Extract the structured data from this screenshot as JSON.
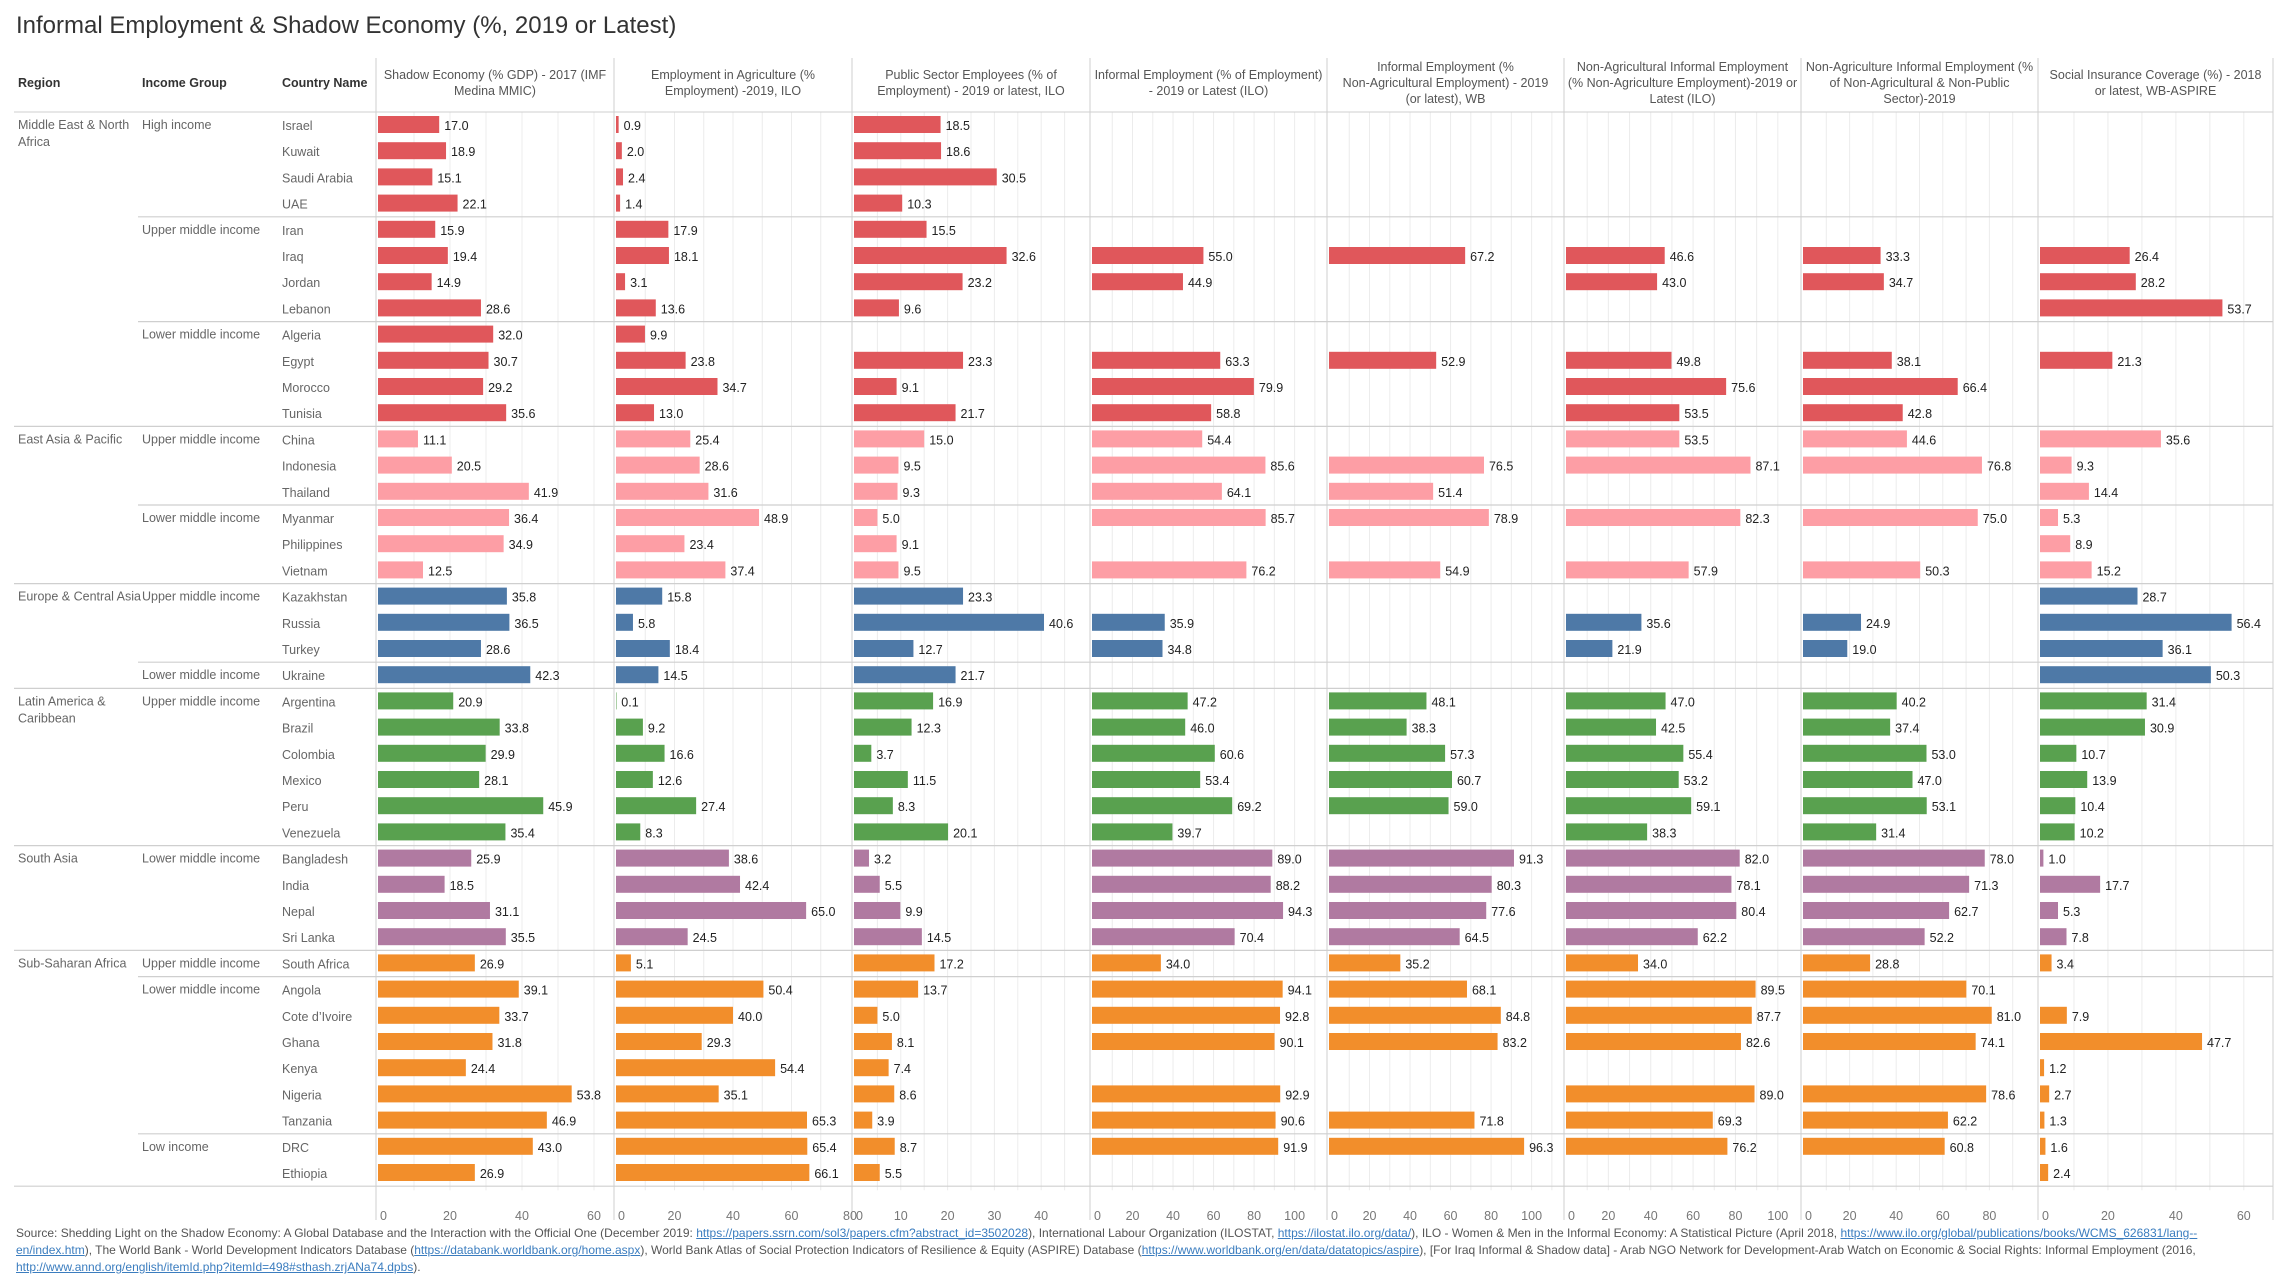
{
  "title": "Informal Employment & Shadow Economy (%, 2019 or Latest)",
  "headers": {
    "region": "Region",
    "income_group": "Income Group",
    "country": "Country Name"
  },
  "colors": {
    "Middle East & North Africa": "#e0575b",
    "East Asia & Pacific": "#fd9ea5",
    "Europe & Central Asia": "#4e79a7",
    "Latin America & Caribbean": "#59a14f",
    "South Asia": "#b07aa1",
    "Sub-Saharan Africa": "#f28e2b"
  },
  "chart_data": {
    "type": "bar",
    "orientation": "horizontal",
    "title": "Informal Employment & Shadow Economy (%, 2019 or Latest)",
    "grid": true,
    "legend": "none (color by region)",
    "measures": [
      {
        "name": "Shadow Economy (% GDP) - 2017 (IMF Medina MMIC)",
        "xlim": [
          0,
          65
        ],
        "ticks": [
          0,
          20,
          40,
          60
        ]
      },
      {
        "name": "Employment in Agriculture (% Employment) -2019, ILO",
        "xlim": [
          0,
          80
        ],
        "ticks": [
          0,
          20,
          40,
          60,
          80
        ]
      },
      {
        "name": "Public Sector Employees (% of Employment) - 2019 or latest, ILO",
        "xlim": [
          0,
          50
        ],
        "ticks": [
          0,
          10,
          20,
          30,
          40
        ]
      },
      {
        "name": "Informal Employment (% of Employment) - 2019 or Latest (ILO)",
        "xlim": [
          0,
          115
        ],
        "ticks": [
          0,
          20,
          40,
          60,
          80,
          100
        ]
      },
      {
        "name": "Informal Employment (% Non-Agricultural Employment) - 2019 (or latest), WB",
        "xlim": [
          0,
          115
        ],
        "ticks": [
          0,
          20,
          40,
          60,
          80,
          100
        ]
      },
      {
        "name": "Non-Agricultural Informal Employment (% Non-Agriculture Employment)-2019 or Latest (ILO)",
        "xlim": [
          0,
          110
        ],
        "ticks": [
          0,
          20,
          40,
          60,
          80,
          100
        ]
      },
      {
        "name": "Non-Agriculture Informal Employment (% of Non-Agricultural & Non-Public Sector)-2019",
        "xlim": [
          0,
          100
        ],
        "ticks": [
          0,
          20,
          40,
          60,
          80
        ]
      },
      {
        "name": "Social Insurance Coverage (%) - 2018 or latest, WB-ASPIRE",
        "xlim": [
          0,
          68
        ],
        "ticks": [
          0,
          20,
          40,
          60
        ]
      }
    ],
    "groups": [
      {
        "region": "Middle East & North Africa",
        "income": "High income",
        "rows": [
          {
            "country": "Israel",
            "values": [
              17.0,
              0.9,
              18.5,
              null,
              null,
              null,
              null,
              null
            ]
          },
          {
            "country": "Kuwait",
            "values": [
              18.9,
              2.0,
              18.6,
              null,
              null,
              null,
              null,
              null
            ]
          },
          {
            "country": "Saudi Arabia",
            "values": [
              15.1,
              2.4,
              30.5,
              null,
              null,
              null,
              null,
              null
            ]
          },
          {
            "country": "UAE",
            "values": [
              22.1,
              1.4,
              10.3,
              null,
              null,
              null,
              null,
              null
            ]
          }
        ]
      },
      {
        "region": "Middle East & North Africa",
        "income": "Upper middle income",
        "rows": [
          {
            "country": "Iran",
            "values": [
              15.9,
              17.9,
              15.5,
              null,
              null,
              null,
              null,
              null
            ]
          },
          {
            "country": "Iraq",
            "values": [
              19.4,
              18.1,
              32.6,
              55.0,
              67.2,
              46.6,
              33.3,
              26.4
            ]
          },
          {
            "country": "Jordan",
            "values": [
              14.9,
              3.1,
              23.2,
              44.9,
              null,
              43.0,
              34.7,
              28.2
            ]
          },
          {
            "country": "Lebanon",
            "values": [
              28.6,
              13.6,
              9.6,
              null,
              null,
              null,
              null,
              53.7
            ]
          }
        ]
      },
      {
        "region": "Middle East & North Africa",
        "income": "Lower middle income",
        "rows": [
          {
            "country": "Algeria",
            "values": [
              32.0,
              9.9,
              null,
              null,
              null,
              null,
              null,
              null
            ]
          },
          {
            "country": "Egypt",
            "values": [
              30.7,
              23.8,
              23.3,
              63.3,
              52.9,
              49.8,
              38.1,
              21.3
            ]
          },
          {
            "country": "Morocco",
            "values": [
              29.2,
              34.7,
              9.1,
              79.9,
              null,
              75.6,
              66.4,
              null
            ]
          },
          {
            "country": "Tunisia",
            "values": [
              35.6,
              13.0,
              21.7,
              58.8,
              null,
              53.5,
              42.8,
              null
            ]
          }
        ]
      },
      {
        "region": "East Asia & Pacific",
        "income": "Upper middle income",
        "rows": [
          {
            "country": "China",
            "values": [
              11.1,
              25.4,
              15.0,
              54.4,
              null,
              53.5,
              44.6,
              35.6
            ]
          },
          {
            "country": "Indonesia",
            "values": [
              20.5,
              28.6,
              9.5,
              85.6,
              76.5,
              87.1,
              76.8,
              9.3
            ]
          },
          {
            "country": "Thailand",
            "values": [
              41.9,
              31.6,
              9.3,
              64.1,
              51.4,
              null,
              null,
              14.4
            ]
          }
        ]
      },
      {
        "region": "East Asia & Pacific",
        "income": "Lower middle income",
        "rows": [
          {
            "country": "Myanmar",
            "values": [
              36.4,
              48.9,
              5.0,
              85.7,
              78.9,
              82.3,
              75.0,
              5.3
            ]
          },
          {
            "country": "Philippines",
            "values": [
              34.9,
              23.4,
              9.1,
              null,
              null,
              null,
              null,
              8.9
            ]
          },
          {
            "country": "Vietnam",
            "values": [
              12.5,
              37.4,
              9.5,
              76.2,
              54.9,
              57.9,
              50.3,
              15.2
            ]
          }
        ]
      },
      {
        "region": "Europe & Central Asia",
        "income": "Upper middle income",
        "rows": [
          {
            "country": "Kazakhstan",
            "values": [
              35.8,
              15.8,
              23.3,
              null,
              null,
              null,
              null,
              28.7
            ]
          },
          {
            "country": "Russia",
            "values": [
              36.5,
              5.8,
              40.6,
              35.9,
              null,
              35.6,
              24.9,
              56.4
            ]
          },
          {
            "country": "Turkey",
            "values": [
              28.6,
              18.4,
              12.7,
              34.8,
              null,
              21.9,
              19.0,
              36.1
            ]
          }
        ]
      },
      {
        "region": "Europe & Central Asia",
        "income": "Lower middle income",
        "rows": [
          {
            "country": "Ukraine",
            "values": [
              42.3,
              14.5,
              21.7,
              null,
              null,
              null,
              null,
              50.3
            ]
          }
        ]
      },
      {
        "region": "Latin America & Caribbean",
        "income": "Upper middle income",
        "rows": [
          {
            "country": "Argentina",
            "values": [
              20.9,
              0.1,
              16.9,
              47.2,
              48.1,
              47.0,
              40.2,
              31.4
            ]
          },
          {
            "country": "Brazil",
            "values": [
              33.8,
              9.2,
              12.3,
              46.0,
              38.3,
              42.5,
              37.4,
              30.9
            ]
          },
          {
            "country": "Colombia",
            "values": [
              29.9,
              16.6,
              3.7,
              60.6,
              57.3,
              55.4,
              53.0,
              10.7
            ]
          },
          {
            "country": "Mexico",
            "values": [
              28.1,
              12.6,
              11.5,
              53.4,
              60.7,
              53.2,
              47.0,
              13.9
            ]
          },
          {
            "country": "Peru",
            "values": [
              45.9,
              27.4,
              8.3,
              69.2,
              59.0,
              59.1,
              53.1,
              10.4
            ]
          },
          {
            "country": "Venezuela",
            "values": [
              35.4,
              8.3,
              20.1,
              39.7,
              null,
              38.3,
              31.4,
              10.2
            ]
          }
        ]
      },
      {
        "region": "South Asia",
        "income": "Lower middle income",
        "rows": [
          {
            "country": "Bangladesh",
            "values": [
              25.9,
              38.6,
              3.2,
              89.0,
              91.3,
              82.0,
              78.0,
              1.0
            ]
          },
          {
            "country": "India",
            "values": [
              18.5,
              42.4,
              5.5,
              88.2,
              80.3,
              78.1,
              71.3,
              17.7
            ]
          },
          {
            "country": "Nepal",
            "values": [
              31.1,
              65.0,
              9.9,
              94.3,
              77.6,
              80.4,
              62.7,
              5.3
            ]
          },
          {
            "country": "Sri Lanka",
            "values": [
              35.5,
              24.5,
              14.5,
              70.4,
              64.5,
              62.2,
              52.2,
              7.8
            ]
          }
        ]
      },
      {
        "region": "Sub-Saharan Africa",
        "income": "Upper middle income",
        "rows": [
          {
            "country": "South Africa",
            "values": [
              26.9,
              5.1,
              17.2,
              34.0,
              35.2,
              34.0,
              28.8,
              3.4
            ]
          }
        ]
      },
      {
        "region": "Sub-Saharan Africa",
        "income": "Lower middle income",
        "rows": [
          {
            "country": "Angola",
            "values": [
              39.1,
              50.4,
              13.7,
              94.1,
              68.1,
              89.5,
              70.1,
              null
            ]
          },
          {
            "country": "Cote d’Ivoire",
            "values": [
              33.7,
              40.0,
              5.0,
              92.8,
              84.8,
              87.7,
              81.0,
              7.9
            ]
          },
          {
            "country": "Ghana",
            "values": [
              31.8,
              29.3,
              8.1,
              90.1,
              83.2,
              82.6,
              74.1,
              47.7
            ]
          },
          {
            "country": "Kenya",
            "values": [
              24.4,
              54.4,
              7.4,
              null,
              null,
              null,
              null,
              1.2
            ]
          },
          {
            "country": "Nigeria",
            "values": [
              53.8,
              35.1,
              8.6,
              92.9,
              null,
              89.0,
              78.6,
              2.7
            ]
          },
          {
            "country": "Tanzania",
            "values": [
              46.9,
              65.3,
              3.9,
              90.6,
              71.8,
              69.3,
              62.2,
              1.3
            ]
          }
        ]
      },
      {
        "region": "Sub-Saharan Africa",
        "income": "Low income",
        "rows": [
          {
            "country": "DRC",
            "values": [
              43.0,
              65.4,
              8.7,
              91.9,
              96.3,
              76.2,
              60.8,
              1.6
            ]
          },
          {
            "country": "Ethiopia",
            "values": [
              26.9,
              66.1,
              5.5,
              null,
              null,
              null,
              null,
              2.4
            ]
          }
        ]
      }
    ]
  },
  "source": {
    "parts": [
      {
        "text": "Source: Shedding Light on the Shadow Economy: A Global Database and the Interaction with the Official One (December 2019: "
      },
      {
        "link": "https://papers.ssrn.com/sol3/papers.cfm?abstract_id=3502028"
      },
      {
        "text": "), International Labour Organization (ILOSTAT, "
      },
      {
        "link": "https://ilostat.ilo.org/data/"
      },
      {
        "text": "), ILO - Women & Men in the Informal Economy: A Statistical Picture (April 2018, "
      },
      {
        "link": "https://www.ilo.org/global/publications/books/WCMS_626831/lang--en/index.htm"
      },
      {
        "text": "), The World Bank - World Development Indicators Database ("
      },
      {
        "link": "https://databank.worldbank.org/home.aspx"
      },
      {
        "text": "), World Bank Atlas of Social Protection Indicators of Resilience & Equity (ASPIRE) Database ("
      },
      {
        "link": "https://www.worldbank.org/en/data/datatopics/aspire"
      },
      {
        "text": "), [For Iraq Informal & Shadow data] - Arab NGO Network for Development-Arab Watch on Economic & Social Rights: Informal Employment (2016, "
      },
      {
        "link": "http://www.annd.org/english/itemId.php?itemId=498#sthash.zrjANa74.dpbs"
      },
      {
        "text": ")."
      }
    ]
  }
}
